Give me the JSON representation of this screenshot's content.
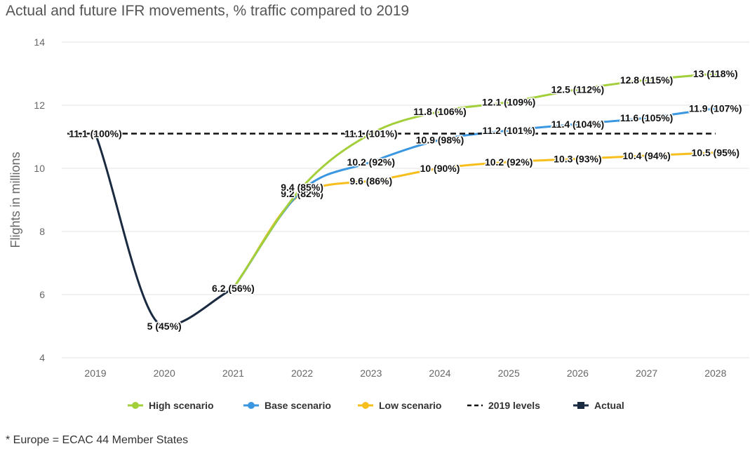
{
  "title": "Actual and future IFR movements, % traffic compared to 2019",
  "footnote": "* Europe = ECAC 44 Member States",
  "chart_data": {
    "type": "line",
    "ylabel": "Flights in millions",
    "ylim": [
      4,
      14
    ],
    "yticks": [
      4,
      6,
      8,
      10,
      12,
      14
    ],
    "categories": [
      "2019",
      "2020",
      "2021",
      "2022",
      "2023",
      "2024",
      "2025",
      "2026",
      "2027",
      "2028"
    ],
    "grid": true,
    "legend_position": "bottom",
    "series": [
      {
        "name": "High scenario",
        "color": "#a2cf3a",
        "style": "solid",
        "values": [
          null,
          null,
          null,
          9.4,
          11.1,
          11.8,
          12.1,
          12.5,
          12.8,
          13
        ],
        "labels": [
          null,
          null,
          null,
          "9.4 (85%)",
          "11.1 (101%)",
          "11.8 (106%)",
          "12.1 (109%)",
          "12.5 (112%)",
          "12.8 (115%)",
          "13 (118%)"
        ]
      },
      {
        "name": "Base scenario",
        "color": "#3b97e0",
        "style": "solid",
        "values": [
          null,
          null,
          null,
          9.3,
          10.2,
          10.9,
          11.2,
          11.4,
          11.6,
          11.9
        ],
        "labels": [
          null,
          null,
          null,
          null,
          "10.2 (92%)",
          "10.9 (98%)",
          "11.2 (101%)",
          "11.4 (104%)",
          "11.6 (105%)",
          "11.9 (107%)"
        ]
      },
      {
        "name": "Low scenario",
        "color": "#f7bf1e",
        "style": "solid",
        "values": [
          null,
          null,
          null,
          9.2,
          9.6,
          10,
          10.2,
          10.3,
          10.4,
          10.5
        ],
        "labels": [
          null,
          null,
          null,
          "9.2 (82%)",
          "9.6 (86%)",
          "10 (90%)",
          "10.2 (92%)",
          "10.3 (93%)",
          "10.4 (94%)",
          "10.5 (95%)"
        ]
      },
      {
        "name": "2019 levels",
        "color": "#111111",
        "style": "dashed",
        "values": [
          11.1,
          11.1,
          11.1,
          11.1,
          11.1,
          11.1,
          11.1,
          11.1,
          11.1,
          11.1
        ],
        "labels": []
      },
      {
        "name": "Actual",
        "color": "#1a2a40",
        "style": "solid",
        "values": [
          11.1,
          5,
          6.2,
          null,
          null,
          null,
          null,
          null,
          null,
          null
        ],
        "labels": [
          "11.1 (100%)",
          "5 (45%)",
          "6.2 (56%)",
          null,
          null,
          null,
          null,
          null,
          null,
          null
        ]
      }
    ]
  }
}
